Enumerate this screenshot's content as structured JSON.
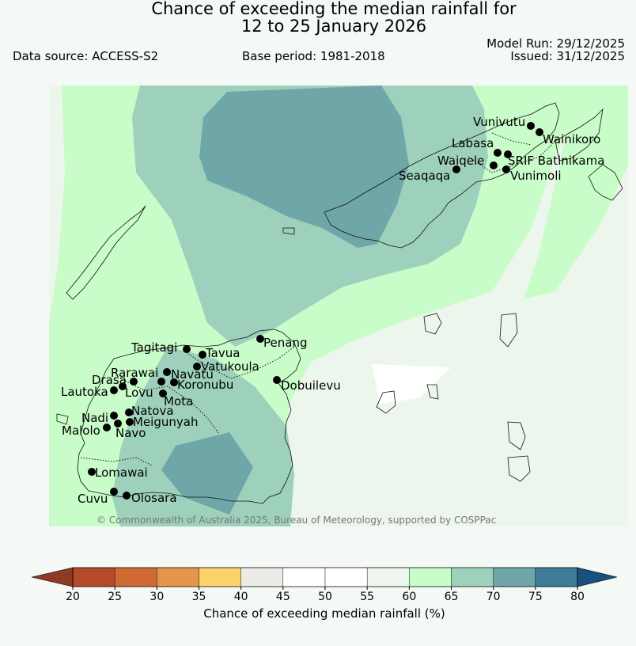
{
  "title_line1": "Chance of exceeding the median rainfall for",
  "title_line2": "12 to 25 January 2026",
  "data_source": "Data source: ACCESS-S2",
  "base_period": "Base period: 1981-2018",
  "model_run": "Model Run: 29/12/2025",
  "issued": "Issued: 31/12/2025",
  "copyright": "© Commonwealth of Australia 2025, Bureau of Meteorology, supported by COSPPac",
  "colorbar": {
    "label": "Chance of exceeding median rainfall (%)",
    "ticks": [
      "20",
      "25",
      "30",
      "35",
      "40",
      "45",
      "50",
      "55",
      "60",
      "65",
      "70",
      "75",
      "80"
    ],
    "colors": [
      "#b34a29",
      "#d06a33",
      "#e4964a",
      "#fcd36a",
      "#ebebe7",
      "#ffffff",
      "#ffffff",
      "#edf6ec",
      "#c8fcc8",
      "#9ed1bc",
      "#6fa6a8",
      "#3f7a99"
    ],
    "under_color": "#8f3a24",
    "over_color": "#1a5080"
  },
  "stations": [
    {
      "name": "Vunivutu"
    },
    {
      "name": "Wainikoro"
    },
    {
      "name": "Labasa"
    },
    {
      "name": "SRIF Batinikama"
    },
    {
      "name": "Waiqele"
    },
    {
      "name": "Seaqaqa"
    },
    {
      "name": "Vunimoli"
    },
    {
      "name": "Penang"
    },
    {
      "name": "Tagitagi"
    },
    {
      "name": "Tavua"
    },
    {
      "name": "Vatukoula"
    },
    {
      "name": "Rarawai"
    },
    {
      "name": "Navatu"
    },
    {
      "name": "Drasa"
    },
    {
      "name": "Koronubu"
    },
    {
      "name": "Lautoka"
    },
    {
      "name": "Lovu"
    },
    {
      "name": "Mota"
    },
    {
      "name": "Dobuilevu"
    },
    {
      "name": "Natova"
    },
    {
      "name": "Nadi"
    },
    {
      "name": "Meigunyah"
    },
    {
      "name": "Malolo"
    },
    {
      "name": "Navo"
    },
    {
      "name": "Lomawai"
    },
    {
      "name": "Cuvu"
    },
    {
      "name": "Olosara"
    }
  ]
}
